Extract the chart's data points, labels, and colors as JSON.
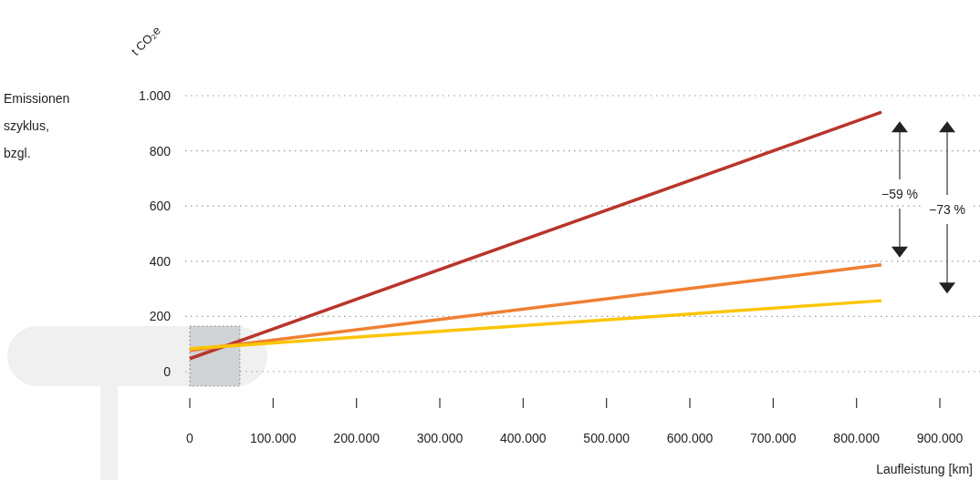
{
  "chart_data": {
    "type": "line",
    "ylabel": "t CO₂e",
    "xlabel": "Laufleistung [km]",
    "x": [
      0,
      830000
    ],
    "series": [
      {
        "color": "#b8352c",
        "values": [
          47,
          940
        ]
      },
      {
        "color": "#f07f33",
        "values": [
          77,
          387
        ]
      },
      {
        "color": "#fcc400",
        "values": [
          83,
          257
        ]
      }
    ],
    "xlim": [
      0,
      900000
    ],
    "ylim": [
      0,
      1000
    ],
    "xticks": [
      0,
      {
        "value": 100000,
        "label": "100.000"
      },
      {
        "value": 200000,
        "label": "200.000"
      },
      {
        "value": 300000,
        "label": "300.000"
      },
      {
        "value": 400000,
        "label": "400.000"
      },
      {
        "value": 500000,
        "label": "500.000"
      },
      {
        "value": 600000,
        "label": "600.000"
      },
      {
        "value": 700000,
        "label": "700.000"
      },
      {
        "value": 800000,
        "label": "800.000"
      },
      {
        "value": 900000,
        "label": "900.000"
      }
    ],
    "yticks": [
      0,
      200,
      400,
      600,
      800,
      {
        "value": 1000,
        "label": "1.000"
      }
    ],
    "grid": "y",
    "marker": "none",
    "line_style": "solid",
    "bands": [
      {
        "axis": "x",
        "from": 0,
        "to": 60000,
        "color": "#d0d3d5"
      }
    ],
    "annotations": [
      "Emissionen",
      "szyklus,",
      "bzgl.",
      "−59 %",
      "−73 %"
    ]
  }
}
